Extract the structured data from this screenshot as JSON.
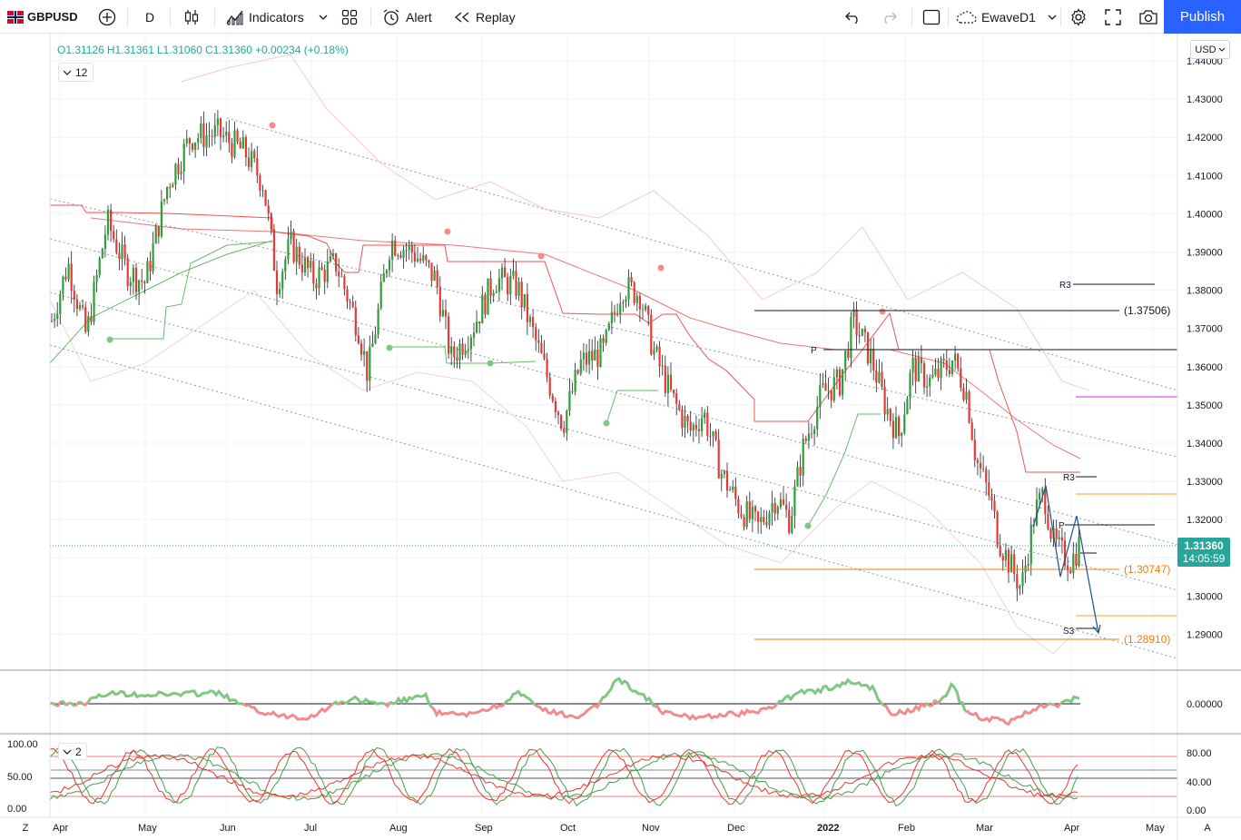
{
  "toolbar": {
    "symbol": "GBPUSD",
    "interval": "D",
    "indicators_label": "Indicators",
    "alert_label": "Alert",
    "replay_label": "Replay",
    "layout_name": "EwaveD1",
    "publish_label": "Publish",
    "icons": [
      "flag-icon",
      "add-symbol-icon",
      "candles-icon",
      "indicators-icon",
      "chevron-down-icon",
      "templates-icon",
      "alert-icon",
      "replay-icon",
      "undo-icon",
      "redo-icon",
      "layout-icon",
      "cloud-icon",
      "settings-icon",
      "fullscreen-icon",
      "snapshot-icon"
    ]
  },
  "legend": {
    "open": "O1.31126",
    "high": "H1.31361",
    "low": "L1.31060",
    "close": "C1.31360",
    "change": "+0.00234 (+0.18%)",
    "badge_main": "12",
    "badge_osc": "2"
  },
  "price_axis": {
    "currency": "USD",
    "ticks": [
      "1.44000",
      "1.43000",
      "1.42000",
      "1.41000",
      "1.40000",
      "1.39000",
      "1.38000",
      "1.37000",
      "1.36000",
      "1.35000",
      "1.34000",
      "1.33000",
      "1.32000",
      "1.31000",
      "1.30000",
      "1.29000"
    ],
    "last_price": "1.31360",
    "countdown": "14:05:59",
    "osc_zero": "0.00000",
    "stoch_right": [
      "80.00",
      "40.00",
      "0.00"
    ],
    "stoch_left": [
      "100.00",
      "50.00",
      "0.00"
    ]
  },
  "time_axis": {
    "labels": [
      "Apr",
      "May",
      "Jun",
      "Jul",
      "Aug",
      "Sep",
      "Oct",
      "Nov",
      "Dec",
      "2022",
      "Feb",
      "Mar",
      "Apr",
      "May"
    ]
  },
  "drawings": {
    "level_137506": "(1.37506)",
    "level_130747": "(1.30747)",
    "level_128910": "(1.28910)",
    "r3_label": "R3",
    "p_label": "P",
    "s3_label": "S3"
  },
  "footer": {
    "left": "Z",
    "right": "A"
  },
  "colors": {
    "up": "#26a69a",
    "down": "#ef5350",
    "accent": "#2962ff",
    "orange": "#f57c00"
  }
}
